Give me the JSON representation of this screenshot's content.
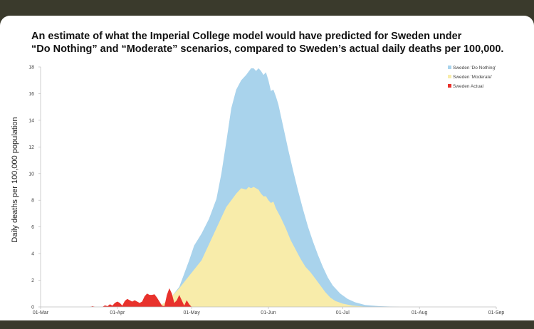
{
  "chart_data": {
    "type": "area",
    "title_lines": [
      "An estimate of what the Imperial College model would have predicted for Sweden under",
      "“Do Nothing” and “Moderate” scenarios, compared to Sweden’s actual daily deaths per 100,000."
    ],
    "xlabel": "",
    "ylabel": "Daily deaths per 100,000 population",
    "x_ticks": [
      "01-Mar",
      "01-Apr",
      "01-May",
      "01-Jun",
      "01-Jul",
      "01-Aug",
      "01-Sep"
    ],
    "y_ticks": [
      "0",
      "2",
      "4",
      "6",
      "8",
      "10",
      "12",
      "14",
      "16",
      "18"
    ],
    "ylim": [
      0,
      18
    ],
    "xlim_days": [
      0,
      184
    ],
    "grid": false,
    "legend_position": "top-right",
    "series": [
      {
        "name": "Sweden 'Do Nothing'",
        "color": "#a9d3ec",
        "points": [
          [
            47,
            0
          ],
          [
            50,
            0.3
          ],
          [
            53,
            0.8
          ],
          [
            56,
            1.5
          ],
          [
            58,
            2.5
          ],
          [
            60,
            3.5
          ],
          [
            62,
            4.6
          ],
          [
            65,
            5.5
          ],
          [
            68,
            6.6
          ],
          [
            71,
            8.1
          ],
          [
            73,
            10
          ],
          [
            75,
            12.4
          ],
          [
            77,
            14.9
          ],
          [
            79,
            16.3
          ],
          [
            81,
            17
          ],
          [
            83,
            17.4
          ],
          [
            85,
            17.9
          ],
          [
            86,
            17.9
          ],
          [
            87,
            17.7
          ],
          [
            88,
            17.9
          ],
          [
            89,
            17.7
          ],
          [
            90,
            17.4
          ],
          [
            91,
            17.6
          ],
          [
            92,
            17
          ],
          [
            93,
            16.2
          ],
          [
            94,
            16.3
          ],
          [
            95,
            15.8
          ],
          [
            96,
            15.2
          ],
          [
            98,
            13.5
          ],
          [
            100,
            11.8
          ],
          [
            102,
            10.2
          ],
          [
            104,
            8.7
          ],
          [
            106,
            7.3
          ],
          [
            108,
            6
          ],
          [
            110,
            4.9
          ],
          [
            112,
            3.9
          ],
          [
            114,
            3
          ],
          [
            116,
            2.2
          ],
          [
            118,
            1.6
          ],
          [
            121,
            1
          ],
          [
            124,
            0.6
          ],
          [
            127,
            0.35
          ],
          [
            131,
            0.15
          ],
          [
            137,
            0.05
          ],
          [
            145,
            0
          ]
        ]
      },
      {
        "name": "Sweden 'Moderate'",
        "color": "#f8ecaa",
        "points": [
          [
            47,
            0
          ],
          [
            50,
            0.3
          ],
          [
            53,
            0.8
          ],
          [
            56,
            1.4
          ],
          [
            59,
            2.1
          ],
          [
            62,
            2.8
          ],
          [
            65,
            3.5
          ],
          [
            67,
            4.3
          ],
          [
            69,
            5.1
          ],
          [
            71,
            5.9
          ],
          [
            73,
            6.7
          ],
          [
            75,
            7.5
          ],
          [
            77,
            8
          ],
          [
            79,
            8.5
          ],
          [
            81,
            8.9
          ],
          [
            83,
            8.8
          ],
          [
            84,
            9
          ],
          [
            85,
            8.9
          ],
          [
            86,
            9
          ],
          [
            87,
            8.9
          ],
          [
            88,
            8.8
          ],
          [
            89,
            8.5
          ],
          [
            90,
            8.3
          ],
          [
            91,
            8.3
          ],
          [
            92,
            8
          ],
          [
            93,
            7.8
          ],
          [
            94,
            7.9
          ],
          [
            95,
            7.4
          ],
          [
            97,
            6.7
          ],
          [
            99,
            5.9
          ],
          [
            101,
            5
          ],
          [
            103,
            4.3
          ],
          [
            105,
            3.6
          ],
          [
            107,
            3
          ],
          [
            109,
            2.6
          ],
          [
            111,
            2.1
          ],
          [
            113,
            1.6
          ],
          [
            115,
            1.1
          ],
          [
            117,
            0.7
          ],
          [
            119,
            0.45
          ],
          [
            122,
            0.25
          ],
          [
            126,
            0.1
          ],
          [
            132,
            0
          ]
        ]
      },
      {
        "name": "Sweden Actual",
        "color": "#e8322c",
        "points": [
          [
            20,
            0
          ],
          [
            21,
            0.05
          ],
          [
            22,
            0
          ],
          [
            25,
            0
          ],
          [
            26,
            0.12
          ],
          [
            27,
            0.05
          ],
          [
            28,
            0.2
          ],
          [
            29,
            0.1
          ],
          [
            30,
            0.3
          ],
          [
            31,
            0.4
          ],
          [
            32,
            0.3
          ],
          [
            33,
            0.1
          ],
          [
            34,
            0.45
          ],
          [
            35,
            0.6
          ],
          [
            36,
            0.5
          ],
          [
            37,
            0.4
          ],
          [
            38,
            0.5
          ],
          [
            39,
            0.4
          ],
          [
            40,
            0.3
          ],
          [
            41,
            0.4
          ],
          [
            42,
            0.8
          ],
          [
            43,
            1
          ],
          [
            44,
            0.9
          ],
          [
            45,
            0.9
          ],
          [
            46,
            0.95
          ],
          [
            47,
            0.7
          ],
          [
            48,
            0.4
          ],
          [
            49,
            0.1
          ],
          [
            50,
            0.05
          ],
          [
            51,
            0.9
          ],
          [
            52,
            1.4
          ],
          [
            53,
            1
          ],
          [
            54,
            0.3
          ],
          [
            55,
            0.5
          ],
          [
            56,
            0.9
          ],
          [
            57,
            0.5
          ],
          [
            58,
            0.1
          ],
          [
            59,
            0.5
          ],
          [
            60,
            0.2
          ],
          [
            61,
            0
          ]
        ]
      }
    ]
  }
}
